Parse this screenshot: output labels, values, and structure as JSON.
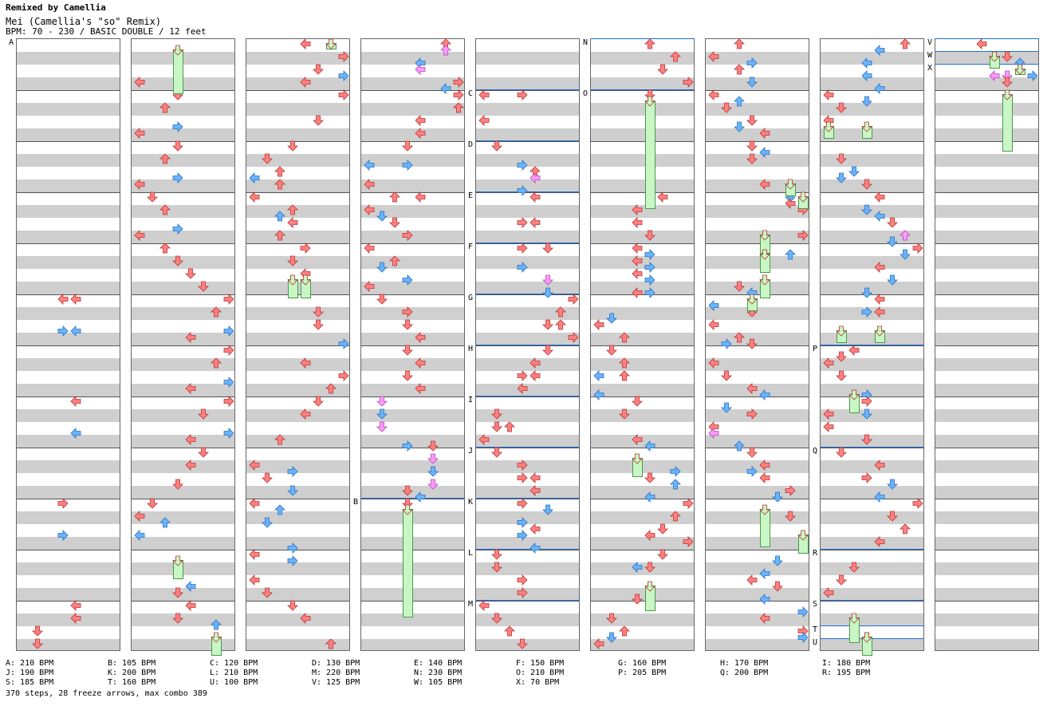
{
  "header": {
    "credit": "Remixed by Camellia",
    "title": "Mei (Camellia's \"so\" Remix)",
    "subline": "BPM: 70 - 230 / BASIC DOUBLE / 12 feet"
  },
  "colors": {
    "red": "#ff8080",
    "blue": "#6ab4ff",
    "pink": "#ff9aff",
    "freeze": "#c8f7c5",
    "bpm_line": "#1f6fd6"
  },
  "section_labels": [
    "A",
    "B",
    "C",
    "D",
    "E",
    "F",
    "G",
    "H",
    "I",
    "J",
    "K",
    "L",
    "M",
    "N",
    "O",
    "P",
    "Q",
    "R",
    "S",
    "T",
    "U",
    "V",
    "W",
    "X"
  ],
  "bpm_legend": [
    {
      "text": "A: 210 BPM"
    },
    {
      "text": "B: 105 BPM"
    },
    {
      "text": "C: 120 BPM"
    },
    {
      "text": "D: 130 BPM"
    },
    {
      "text": "E: 140 BPM"
    },
    {
      "text": "F: 150 BPM"
    },
    {
      "text": "G: 160 BPM"
    },
    {
      "text": "H: 170 BPM"
    },
    {
      "text": "I: 180 BPM"
    },
    {
      "text": "J: 190 BPM"
    },
    {
      "text": "K: 200 BPM"
    },
    {
      "text": "L: 210 BPM"
    },
    {
      "text": "M: 220 BPM"
    },
    {
      "text": "N: 230 BPM"
    },
    {
      "text": "O: 210 BPM"
    },
    {
      "text": "P: 205 BPM"
    },
    {
      "text": "Q: 200 BPM"
    },
    {
      "text": "R: 195 BPM"
    },
    {
      "text": "S: 185 BPM"
    },
    {
      "text": "T: 160 BPM"
    },
    {
      "text": "U: 100 BPM"
    },
    {
      "text": "V: 125 BPM"
    },
    {
      "text": "W: 105 BPM"
    },
    {
      "text": "X: 70 BPM"
    }
  ],
  "stats": "370 steps, 28 freeze arrows, max combo 389"
}
